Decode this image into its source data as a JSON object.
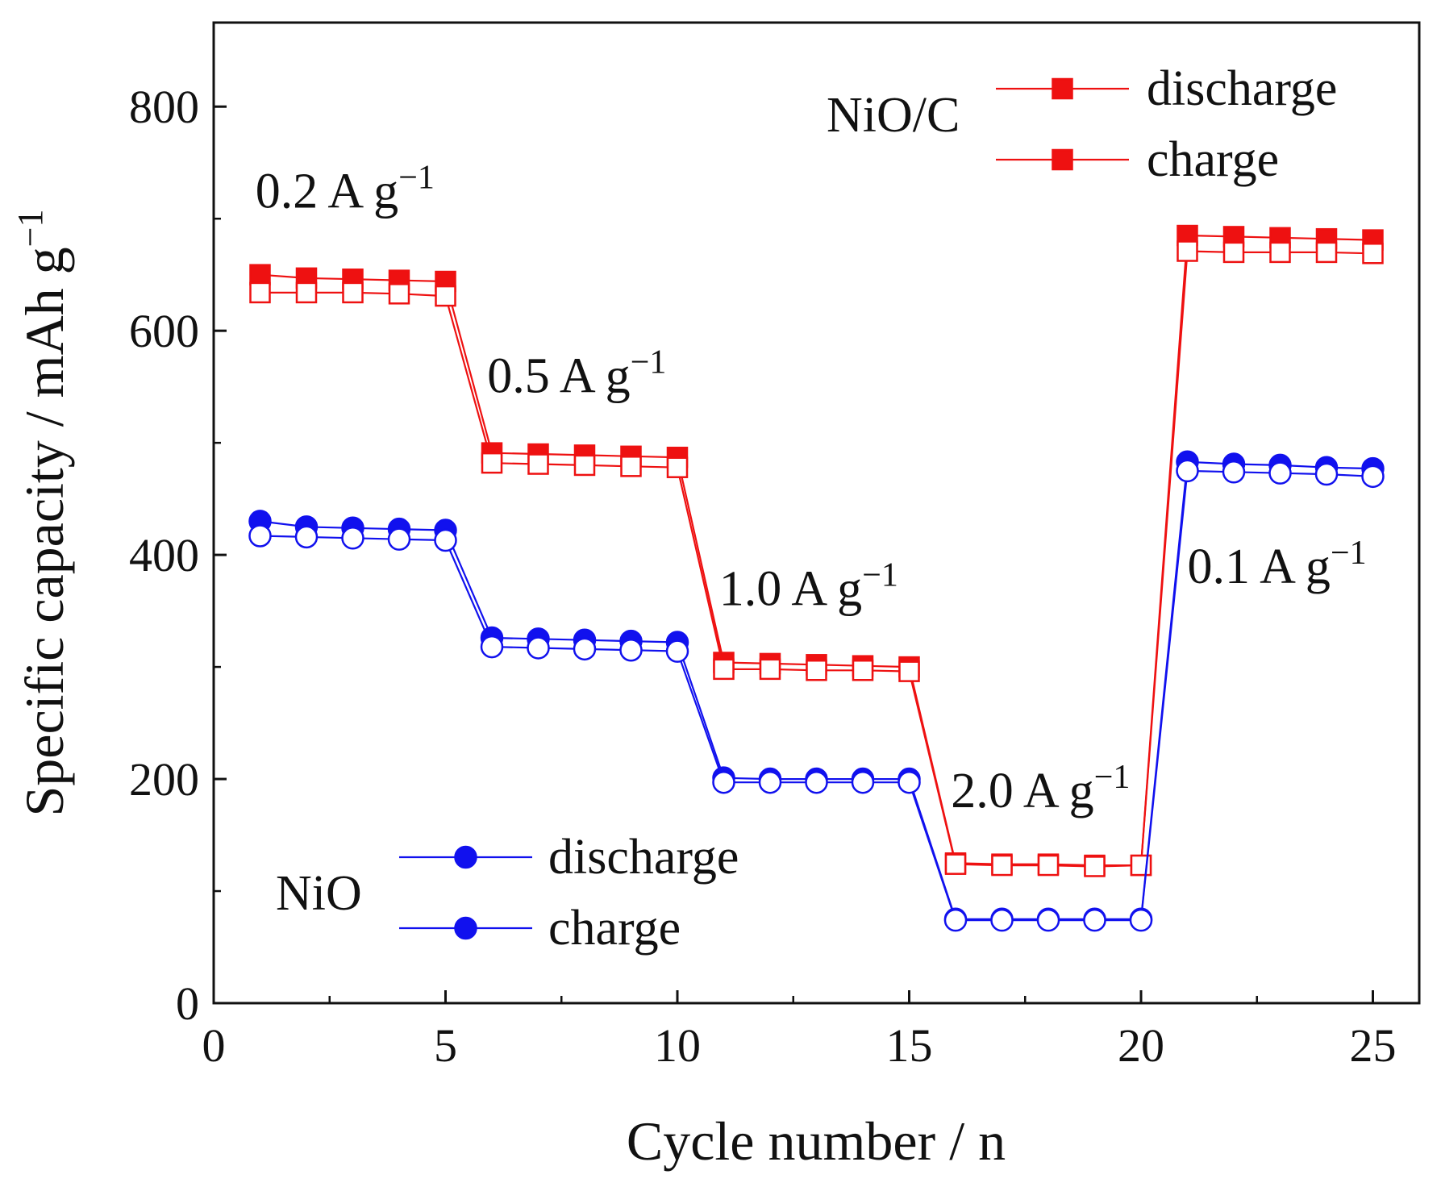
{
  "chart_data": {
    "type": "line",
    "xlabel": "Cycle number / n",
    "ylabel": "Specific capacity / mAh g",
    "ylabel_sup": "−1",
    "xlim": [
      0,
      26
    ],
    "ylim": [
      0,
      875
    ],
    "xticks": [
      0,
      5,
      10,
      15,
      20,
      25
    ],
    "xtick_labels": [
      "0",
      "5",
      "10",
      "15",
      "20",
      "25"
    ],
    "yticks": [
      0,
      200,
      400,
      600,
      800
    ],
    "ytick_labels": [
      "0",
      "200",
      "400",
      "600",
      "800"
    ],
    "x": [
      1,
      2,
      3,
      4,
      5,
      6,
      7,
      8,
      9,
      10,
      11,
      12,
      13,
      14,
      15,
      16,
      17,
      18,
      19,
      20,
      21,
      22,
      23,
      24,
      25
    ],
    "series": [
      {
        "name": "NiO/C discharge",
        "group": "NiO/C",
        "marker": "square",
        "filled": true,
        "color": "#ee1111",
        "values": [
          650,
          647,
          646,
          645,
          644,
          491,
          490,
          489,
          488,
          487,
          304,
          303,
          302,
          301,
          300,
          125,
          124,
          124,
          123,
          123,
          685,
          684,
          683,
          682,
          681
        ]
      },
      {
        "name": "NiO/C charge",
        "group": "NiO/C",
        "marker": "square",
        "filled": false,
        "color": "#ee1111",
        "values": [
          634,
          634,
          634,
          633,
          631,
          482,
          481,
          480,
          479,
          478,
          298,
          298,
          297,
          297,
          296,
          124,
          123,
          123,
          122,
          123,
          671,
          670,
          670,
          670,
          669
        ]
      },
      {
        "name": "NiO discharge",
        "group": "NiO",
        "marker": "circle",
        "filled": true,
        "color": "#1111ee",
        "values": [
          430,
          425,
          424,
          423,
          422,
          326,
          325,
          324,
          323,
          322,
          201,
          200,
          200,
          200,
          200,
          75,
          75,
          75,
          75,
          75,
          483,
          481,
          480,
          478,
          477
        ]
      },
      {
        "name": "NiO charge",
        "group": "NiO",
        "marker": "circle",
        "filled": false,
        "color": "#1111ee",
        "values": [
          417,
          416,
          415,
          414,
          413,
          318,
          317,
          316,
          315,
          314,
          197,
          197,
          197,
          197,
          197,
          74,
          74,
          74,
          74,
          74,
          475,
          474,
          473,
          472,
          470
        ]
      }
    ],
    "annotations": [
      {
        "text": "0.2 A g",
        "sup": "−1",
        "x": 0.9,
        "y": 710
      },
      {
        "text": "0.5 A g",
        "sup": "−1",
        "x": 5.9,
        "y": 545
      },
      {
        "text": "1.0 A g",
        "sup": "−1",
        "x": 10.9,
        "y": 355
      },
      {
        "text": "2.0 A g",
        "sup": "−1",
        "x": 15.9,
        "y": 175
      },
      {
        "text": "0.1 A g",
        "sup": "−1",
        "x": 21.0,
        "y": 375
      }
    ],
    "legends": [
      {
        "group_label": "NiO/C",
        "placement": "top-right",
        "entries": [
          "discharge",
          "charge"
        ]
      },
      {
        "group_label": "NiO",
        "placement": "bottom-left",
        "entries": [
          "discharge",
          "charge"
        ]
      }
    ]
  }
}
